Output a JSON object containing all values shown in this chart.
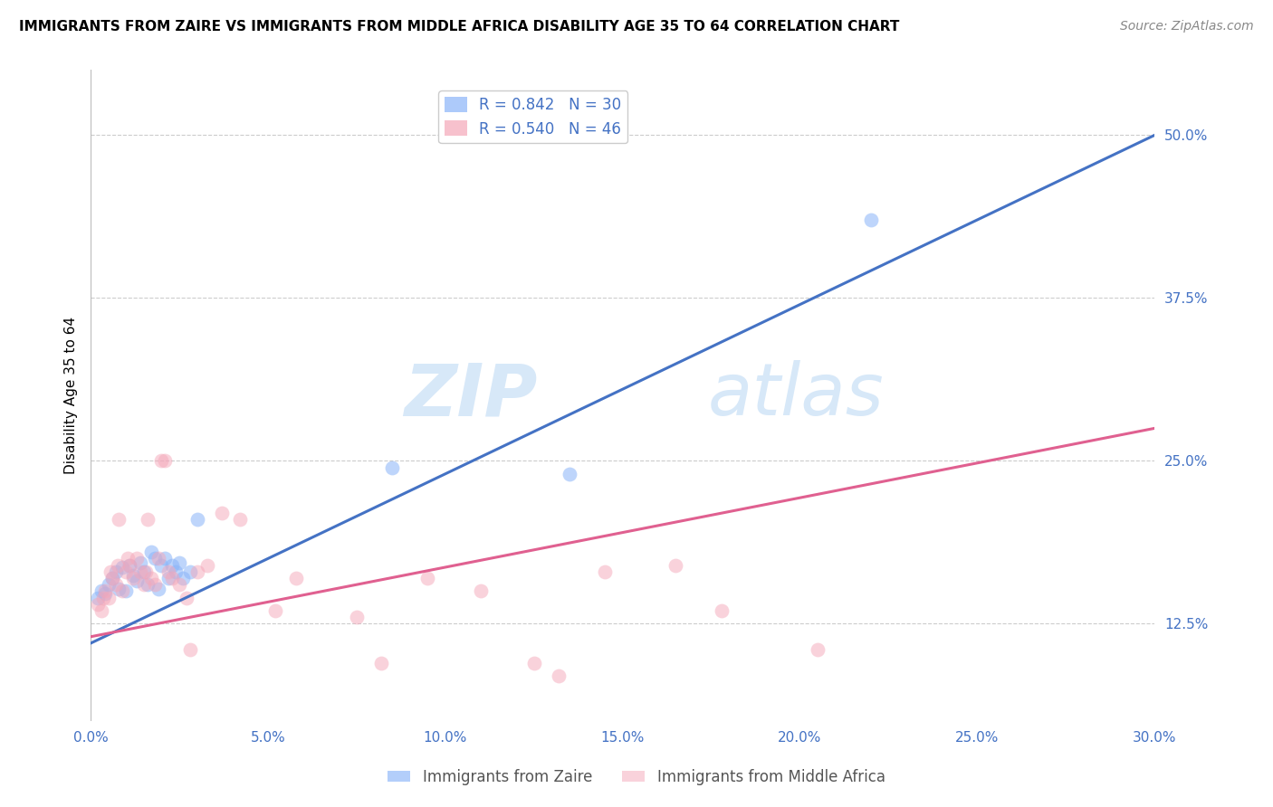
{
  "title": "IMMIGRANTS FROM ZAIRE VS IMMIGRANTS FROM MIDDLE AFRICA DISABILITY AGE 35 TO 64 CORRELATION CHART",
  "source": "Source: ZipAtlas.com",
  "xlabel_vals": [
    0.0,
    5.0,
    10.0,
    15.0,
    20.0,
    25.0,
    30.0
  ],
  "ylabel": "Disability Age 35 to 64",
  "ylabel_vals": [
    12.5,
    25.0,
    37.5,
    50.0
  ],
  "xlim": [
    0.0,
    30.0
  ],
  "ylim": [
    5.0,
    55.0
  ],
  "watermark_zip": "ZIP",
  "watermark_atlas": "atlas",
  "blue_R": 0.842,
  "blue_N": 30,
  "pink_R": 0.54,
  "pink_N": 46,
  "blue_color": "#8ab4f8",
  "pink_color": "#f4a7b9",
  "blue_line_color": "#4472c4",
  "pink_line_color": "#e06090",
  "legend_label_blue": "Immigrants from Zaire",
  "legend_label_pink": "Immigrants from Middle Africa",
  "blue_scatter_x": [
    0.2,
    0.3,
    0.4,
    0.5,
    0.6,
    0.7,
    0.8,
    0.9,
    1.0,
    1.1,
    1.2,
    1.3,
    1.4,
    1.5,
    1.6,
    1.7,
    1.8,
    1.9,
    2.0,
    2.1,
    2.2,
    2.3,
    2.4,
    2.5,
    2.6,
    2.8,
    3.0,
    8.5,
    13.5,
    22.0
  ],
  "blue_scatter_y": [
    14.5,
    15.0,
    14.8,
    15.5,
    16.0,
    16.5,
    15.2,
    16.8,
    15.0,
    17.0,
    16.2,
    15.8,
    17.2,
    16.5,
    15.5,
    18.0,
    17.5,
    15.2,
    17.0,
    17.5,
    16.0,
    17.0,
    16.5,
    17.2,
    16.0,
    16.5,
    20.5,
    24.5,
    24.0,
    43.5
  ],
  "pink_scatter_x": [
    0.2,
    0.3,
    0.4,
    0.5,
    0.6,
    0.7,
    0.8,
    0.9,
    1.0,
    1.1,
    1.2,
    1.3,
    1.4,
    1.5,
    1.6,
    1.7,
    1.8,
    1.9,
    2.0,
    2.1,
    2.3,
    2.5,
    2.7,
    3.0,
    3.3,
    3.7,
    4.2,
    5.2,
    5.8,
    7.5,
    8.2,
    9.5,
    11.0,
    12.5,
    13.2,
    14.5,
    16.5,
    17.8,
    20.5,
    0.35,
    0.55,
    0.75,
    1.05,
    1.55,
    2.2,
    2.8
  ],
  "pink_scatter_y": [
    14.0,
    13.5,
    15.0,
    14.5,
    16.0,
    15.5,
    20.5,
    15.0,
    16.5,
    17.0,
    16.0,
    17.5,
    16.5,
    15.5,
    20.5,
    16.0,
    15.5,
    17.5,
    25.0,
    25.0,
    16.0,
    15.5,
    14.5,
    16.5,
    17.0,
    21.0,
    20.5,
    13.5,
    16.0,
    13.0,
    9.5,
    16.0,
    15.0,
    9.5,
    8.5,
    16.5,
    17.0,
    13.5,
    10.5,
    14.5,
    16.5,
    17.0,
    17.5,
    16.5,
    16.5,
    10.5
  ],
  "blue_trend_x": [
    0.0,
    30.0
  ],
  "blue_trend_y": [
    11.0,
    50.0
  ],
  "pink_trend_x": [
    0.0,
    30.0
  ],
  "pink_trend_y": [
    11.5,
    27.5
  ],
  "grid_color": "#CCCCCC",
  "background_color": "#FFFFFF"
}
